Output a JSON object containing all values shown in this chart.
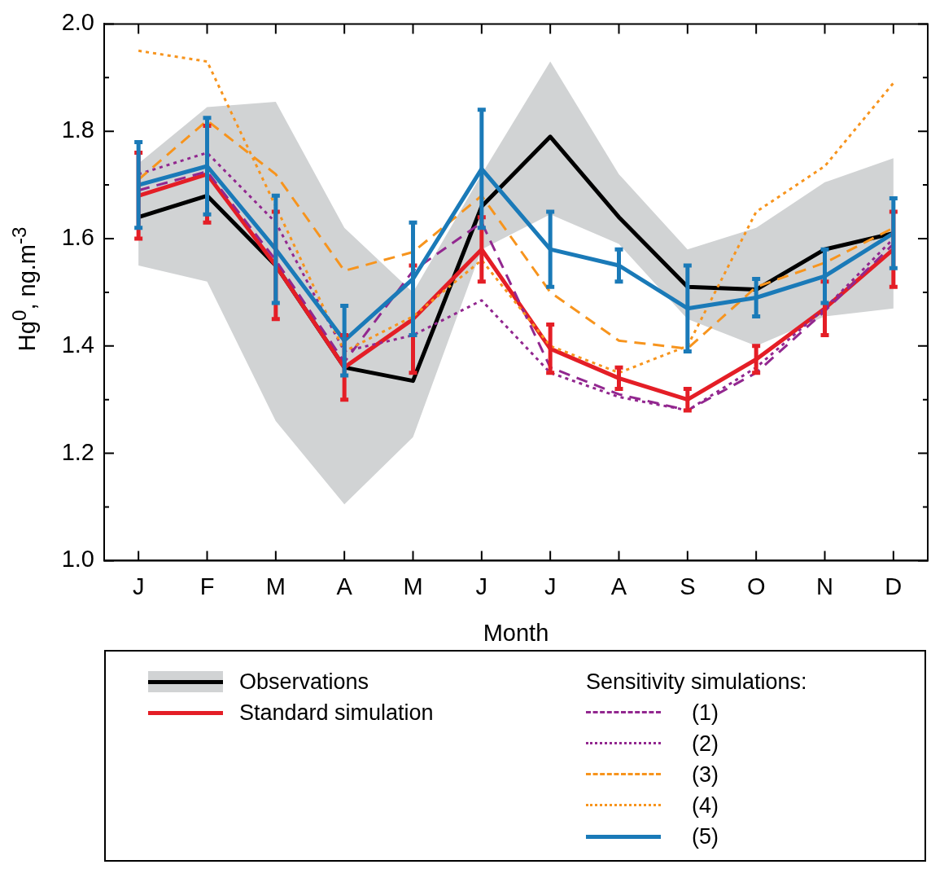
{
  "chart_data": {
    "type": "line",
    "xlabel": "Month",
    "ylabel": "Hg$^{0}$, ng.m$^{-3}$",
    "legend_title": "Sensitivity simulations:",
    "categories": [
      "J",
      "F",
      "M",
      "A",
      "M",
      "J",
      "J",
      "A",
      "S",
      "O",
      "N",
      "D"
    ],
    "ylim": [
      1.0,
      2.0
    ],
    "yticks": [
      {
        "value": 1.0,
        "label": "1.0"
      },
      {
        "value": 1.1,
        "label": null
      },
      1.2,
      {
        "value": 1.3,
        "label": null
      },
      1.4,
      {
        "value": 1.5,
        "label": null
      },
      1.6,
      {
        "value": 1.7,
        "label": null
      },
      1.8,
      {
        "value": 1.9,
        "label": null
      },
      {
        "value": 2.0,
        "label": "2.0"
      }
    ],
    "legend": "bottom",
    "marker": "none",
    "series": [
      {
        "name": "Observations",
        "color": "#000000",
        "line_style": "solid",
        "values": [
          1.64,
          1.68,
          1.55,
          1.36,
          1.335,
          1.66,
          1.79,
          1.64,
          1.51,
          1.505,
          1.58,
          1.61
        ],
        "lower": [
          1.55,
          1.52,
          1.26,
          1.105,
          1.23,
          1.58,
          1.645,
          1.59,
          1.45,
          1.4,
          1.455,
          1.47
        ],
        "upper": [
          1.74,
          1.845,
          1.855,
          1.62,
          1.5,
          1.72,
          1.93,
          1.72,
          1.58,
          1.62,
          1.705,
          1.75
        ]
      },
      {
        "name": "Standard simulation",
        "color": "#e41e26",
        "line_style": "solid",
        "values": [
          1.68,
          1.72,
          1.55,
          1.36,
          1.45,
          1.58,
          1.395,
          1.34,
          1.3,
          1.375,
          1.47,
          1.58
        ],
        "errors": [
          0.08,
          0.09,
          0.1,
          0.06,
          0.1,
          0.06,
          0.045,
          0.02,
          0.02,
          0.025,
          0.05,
          0.07
        ]
      },
      {
        "name": "(1)",
        "color": "#92278f",
        "line_style": "dashed",
        "values": [
          1.69,
          1.725,
          1.56,
          1.37,
          1.54,
          1.63,
          1.36,
          1.31,
          1.28,
          1.35,
          1.465,
          1.59
        ]
      },
      {
        "name": "(2)",
        "color": "#92278f",
        "line_style": "dotted",
        "values": [
          1.72,
          1.76,
          1.63,
          1.39,
          1.42,
          1.485,
          1.35,
          1.305,
          1.28,
          1.36,
          1.47,
          1.6
        ]
      },
      {
        "name": "(3)",
        "color": "#f7941d",
        "line_style": "dashed",
        "values": [
          1.71,
          1.82,
          1.72,
          1.54,
          1.575,
          1.68,
          1.5,
          1.41,
          1.395,
          1.51,
          1.555,
          1.62
        ]
      },
      {
        "name": "(4)",
        "color": "#f7941d",
        "line_style": "dotted",
        "values": [
          1.95,
          1.93,
          1.66,
          1.39,
          1.455,
          1.56,
          1.4,
          1.35,
          1.4,
          1.65,
          1.735,
          1.89
        ]
      },
      {
        "name": "(5)",
        "color": "#1a7ab8",
        "line_style": "solid",
        "values": [
          1.7,
          1.735,
          1.58,
          1.41,
          1.525,
          1.73,
          1.58,
          1.55,
          1.47,
          1.49,
          1.53,
          1.61
        ],
        "errors": [
          0.08,
          0.09,
          0.1,
          0.065,
          0.105,
          0.11,
          0.07,
          0.03,
          0.08,
          0.035,
          0.05,
          0.065
        ]
      }
    ]
  }
}
